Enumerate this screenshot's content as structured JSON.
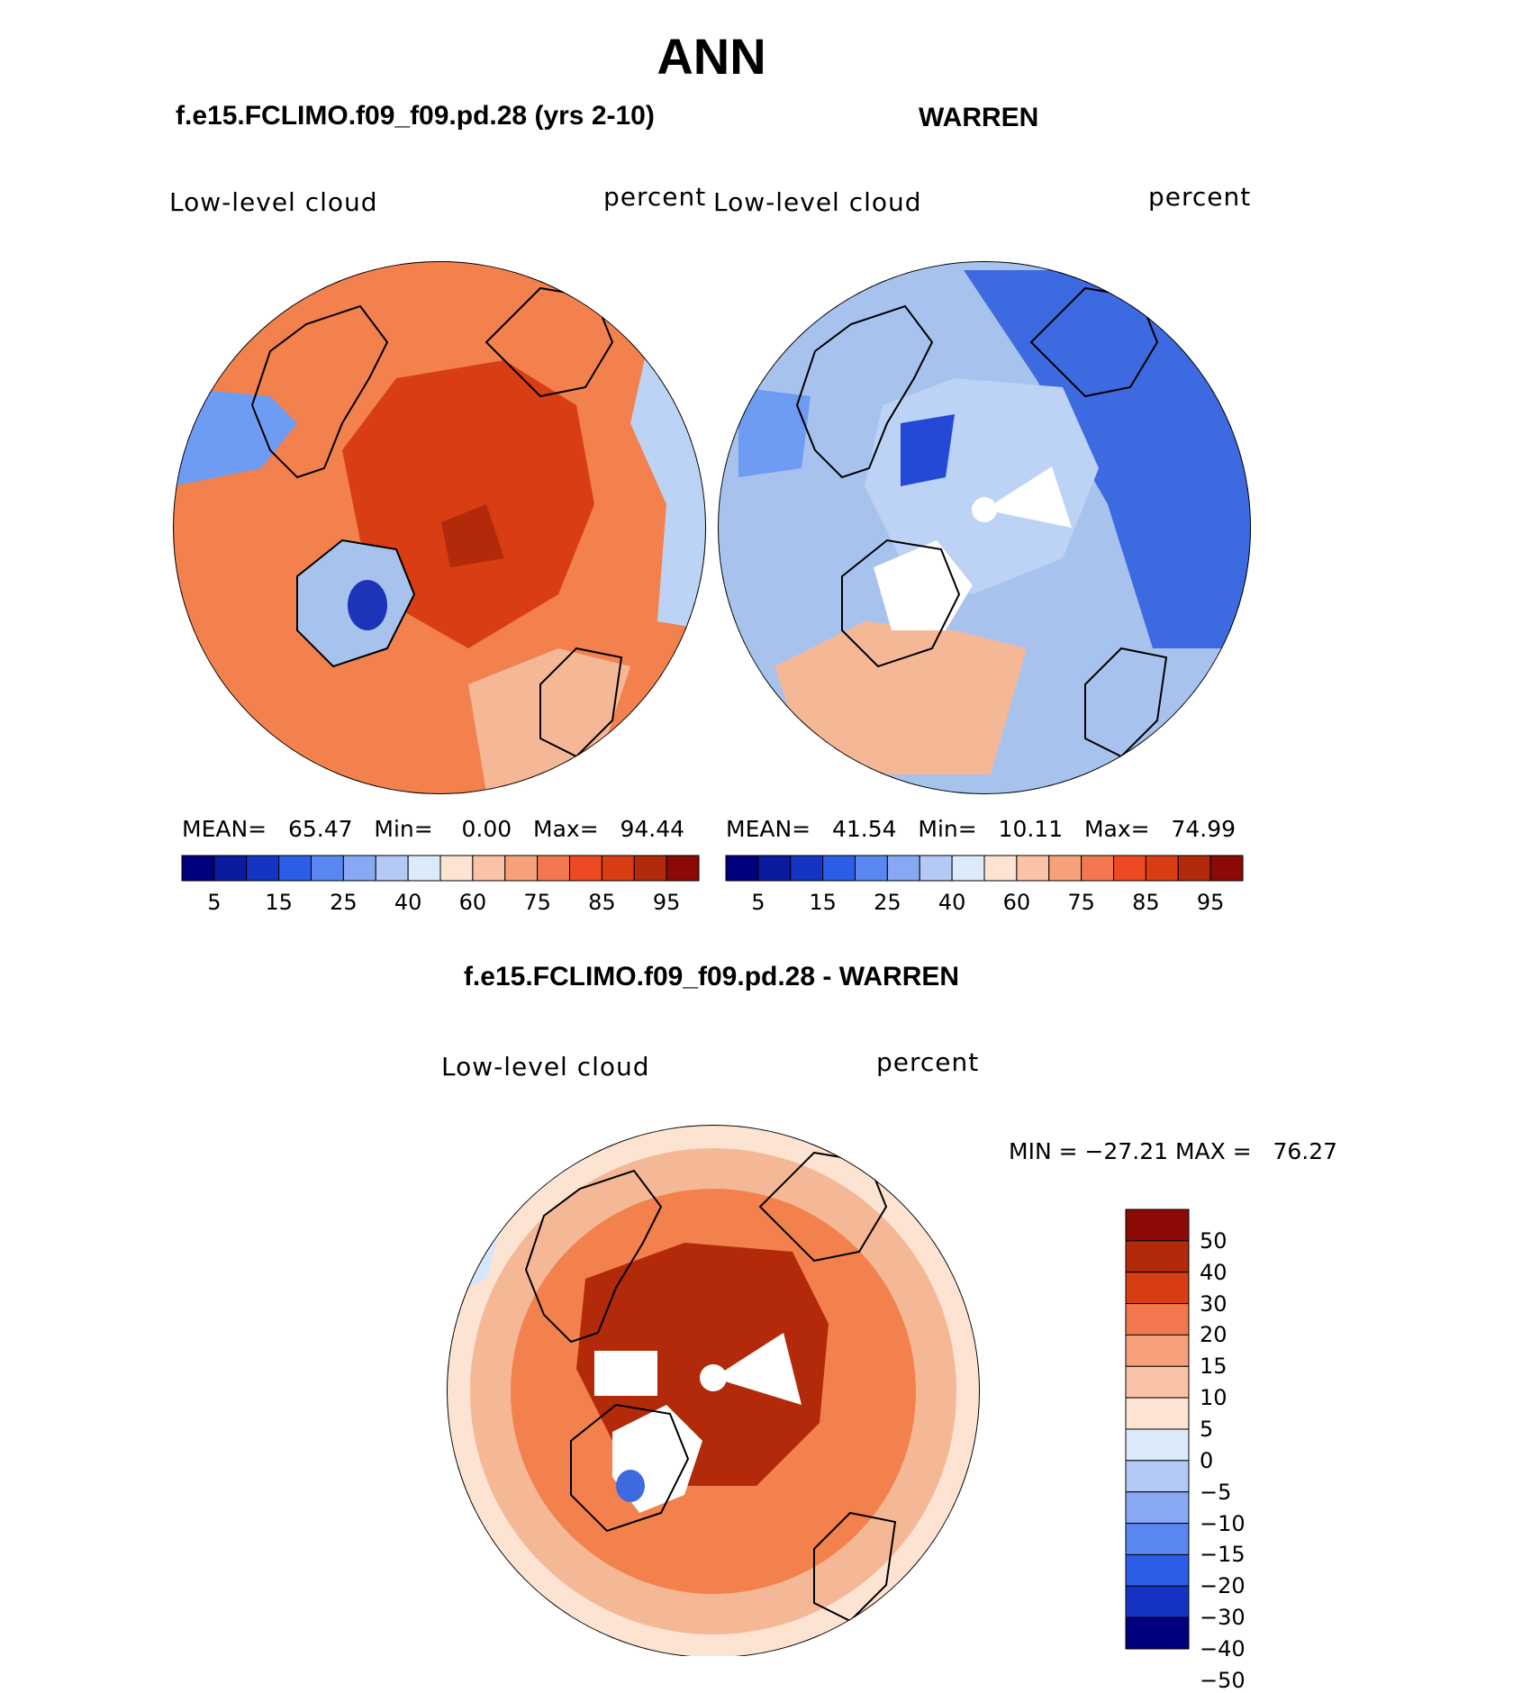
{
  "season": "ANN",
  "panels": [
    {
      "case_title": "f.e15.FCLIMO.f09_f09.pd.28 (yrs 2-10)",
      "variable": "Low-level cloud",
      "units": "percent",
      "stats": {
        "mean_label": "MEAN=",
        "mean": "65.47",
        "min_label": "Min=",
        "min": "0.00",
        "max_label": "Max=",
        "max": "94.44"
      },
      "regions": {
        "ocean": "#f2814e",
        "arctic": "#d93d14",
        "greenland": "#a8c2ee",
        "greenland_core": "#1c34b8",
        "west_band": "#6e9cf3",
        "east_band": "#bcd3f5",
        "core": "#b22a0a",
        "europe": "#f5b896"
      }
    },
    {
      "case_title": "WARREN",
      "variable": "Low-level cloud",
      "units": "percent",
      "stats": {
        "mean_label": "MEAN=",
        "mean": "41.54",
        "min_label": "Min=",
        "min": "10.11",
        "max_label": "Max=",
        "max": "74.99"
      },
      "regions": {
        "ocean": "#a8c2ee",
        "arctic": "#bcd3f5",
        "pacific": "#3d6ae0",
        "north_atlantic": "#f5b896",
        "west_patch": "#6e9cf3",
        "missing": "#ffffff",
        "arctic_dark": "#2449d6"
      }
    }
  ],
  "diff": {
    "title": "f.e15.FCLIMO.f09_f09.pd.28 - WARREN",
    "variable": "Low-level cloud",
    "units": "percent",
    "min_max": "MIN = −27.21 MAX =   76.27",
    "regions": {
      "ocean": "#f2814e",
      "arctic": "#b22a0a",
      "periphery": "#f5b896",
      "edge": "#fde3d2",
      "west_cold": "#d6e6fb",
      "missing": "#ffffff",
      "greenland_blue": "#3d6ae0"
    }
  },
  "abs_colorbar": {
    "colors": [
      "#00007f",
      "#0a1a9e",
      "#1534c4",
      "#2c5de6",
      "#5a86f0",
      "#87a8f3",
      "#b3caf6",
      "#dcebfb",
      "#fde3d2",
      "#fac2a6",
      "#f6a07c",
      "#f2774e",
      "#ec4a22",
      "#d93d14",
      "#b22a0a",
      "#8b0a06"
    ],
    "labels": [
      "5",
      "15",
      "25",
      "40",
      "60",
      "75",
      "85",
      "95"
    ]
  },
  "diff_colorbar": {
    "colors": [
      "#8b0a06",
      "#b22a0a",
      "#d93d14",
      "#f2774e",
      "#f6a07c",
      "#fac2a6",
      "#fde3d2",
      "#dcebfb",
      "#b3caf6",
      "#87a8f3",
      "#5a86f0",
      "#2c5de6",
      "#1534c4",
      "#00007f"
    ],
    "labels": [
      "50",
      "40",
      "30",
      "20",
      "15",
      "10",
      "5",
      "0",
      "−5",
      "−10",
      "−15",
      "−20",
      "−30",
      "−40",
      "−50"
    ]
  }
}
